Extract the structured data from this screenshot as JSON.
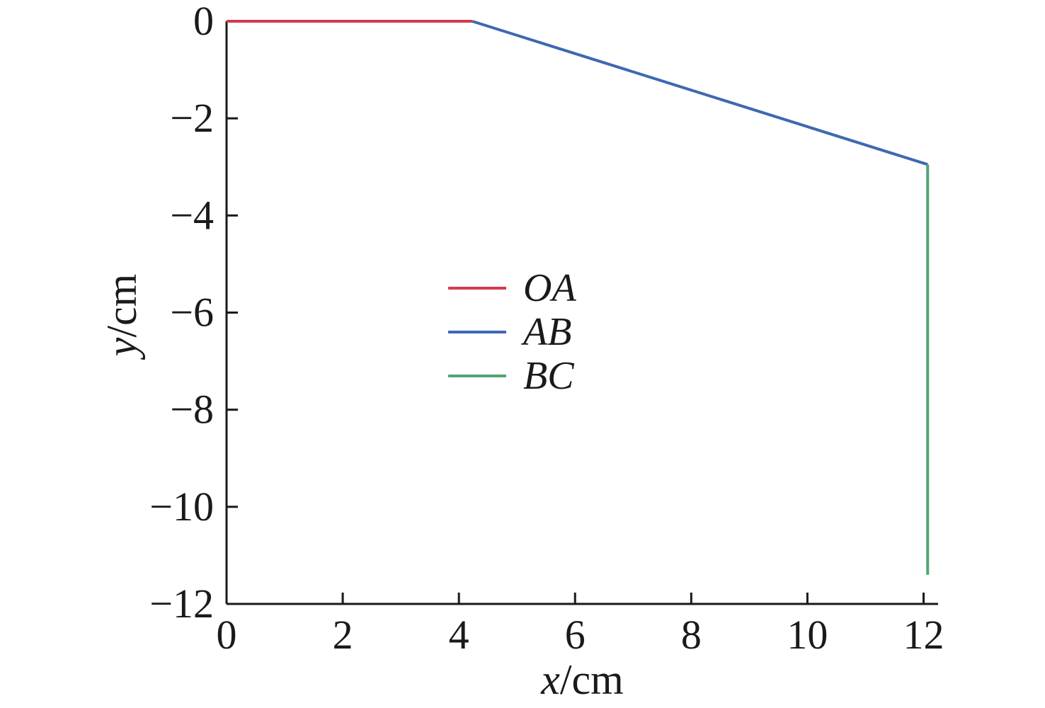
{
  "figure": {
    "background_color": "#ffffff",
    "axis_color": "#1a1a1a",
    "text_color": "#1a1a1a"
  },
  "chart_data": {
    "type": "line",
    "title": "",
    "xlabel": "x/cm",
    "ylabel": "y/cm",
    "xlabel_parts": {
      "variable": "x",
      "unit": "/cm"
    },
    "ylabel_parts": {
      "variable": "y",
      "unit": "/cm"
    },
    "xlim": [
      0,
      12.25
    ],
    "ylim": [
      -12,
      0
    ],
    "x_ticks": [
      0,
      2,
      4,
      6,
      8,
      10,
      12
    ],
    "y_ticks": [
      0,
      -2,
      -4,
      -6,
      -8,
      -10,
      -12
    ],
    "x_tick_labels": [
      "0",
      "2",
      "4",
      "6",
      "8",
      "10",
      "12"
    ],
    "y_tick_labels": [
      "0",
      "−2",
      "−4",
      "−6",
      "−8",
      "−10",
      "−12"
    ],
    "grid": false,
    "legend_position": "center-left-inside",
    "series": [
      {
        "name": "OA",
        "color": "#d53a4e",
        "points": [
          [
            0,
            0
          ],
          [
            4.23,
            0
          ]
        ]
      },
      {
        "name": "AB",
        "color": "#3f68b0",
        "points": [
          [
            4.23,
            0
          ],
          [
            12.07,
            -2.95
          ]
        ]
      },
      {
        "name": "BC",
        "color": "#4ea673",
        "points": [
          [
            12.07,
            -2.95
          ],
          [
            12.07,
            -11.4
          ]
        ]
      }
    ]
  }
}
